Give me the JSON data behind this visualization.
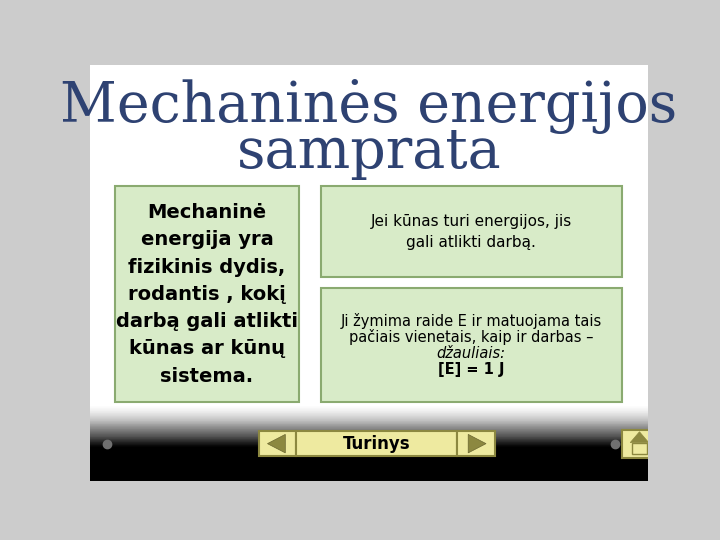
{
  "title_line1": "Mechaninės energijos",
  "title_line2": "samprata",
  "title_color": "#2E4272",
  "bg_color_top": "#D8D8D8",
  "bg_color_bot": "#E8E8E8",
  "box_fill": "#D8EBC8",
  "box_edge": "#8AAA70",
  "box_left_text": "Mechaninė\nenergija yra\nfizikinis dydis,\nrodantis , kokį\ndarbą gali atlikti\nkūnas ar kūnų\nsistema.",
  "box_top_right_text": "Jei kūnas turi energijos, jis\ngali atlikti darbą.",
  "box_bot_right_line1": "Ji žymima raide E ir matuojama tais",
  "box_bot_right_line2": "pačiais vienetais, kaip ir darbas –",
  "box_bot_right_line3": "džauliais:",
  "box_bot_right_line4": "[E] = 1 J",
  "nav_fill": "#EEEAA0",
  "nav_edge": "#8C8840",
  "nav_label": "Turinys",
  "bullet_color": "#707070",
  "arrow_fill": "#8C8840",
  "arrow_edge": "#6A6630",
  "home_fill": "#8C8840"
}
